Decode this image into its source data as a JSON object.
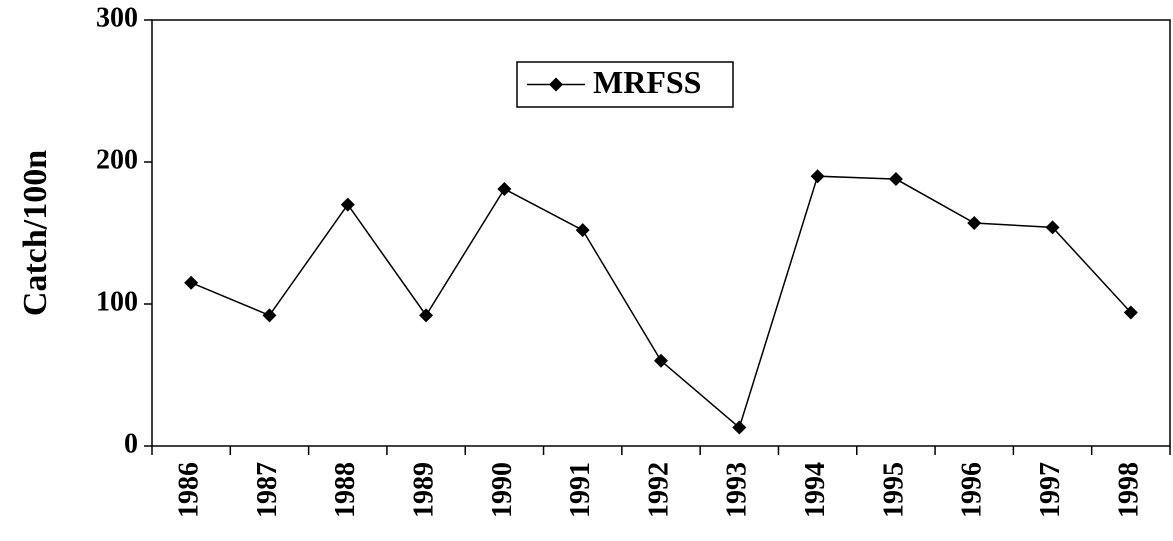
{
  "chart_data": {
    "type": "line",
    "y_label": "Catch/100n",
    "categories": [
      "1986",
      "1987",
      "1988",
      "1989",
      "1990",
      "1991",
      "1992",
      "1993",
      "1994",
      "1995",
      "1996",
      "1997",
      "1998"
    ],
    "series": [
      {
        "name": "MRFSS",
        "color": "#000000",
        "values": [
          115,
          92,
          170,
          92,
          181,
          152,
          60,
          13,
          190,
          188,
          157,
          154,
          94
        ]
      }
    ],
    "ylim": [
      0,
      300
    ],
    "yticks": [
      0,
      100,
      200,
      300
    ],
    "legend": "top-center"
  }
}
